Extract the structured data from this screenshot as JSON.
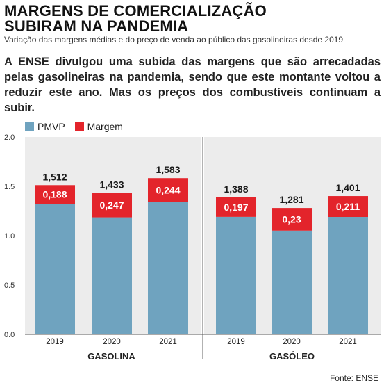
{
  "header": {
    "title_line1": "MARGENS DE COMERCIALIZAÇÃO",
    "title_line2": "SUBIRAM NA PANDEMIA",
    "subtitle": "Variação das margens médias e do preço de venda ao público das gasolineiras desde 2019",
    "lead": "A ENSE divulgou uma subida das margens que são arrecadadas pelas gasolineiras na pandemia, sendo que este montante voltou a reduzir este ano. Mas os preços dos combustíveis continuam a subir."
  },
  "colors": {
    "pmvp": "#6fa3bf",
    "margem": "#e3242b",
    "panel": "#ececec"
  },
  "legend": {
    "pmvp_label": "PMVP",
    "margem_label": "Margem"
  },
  "source": "Fonte: ENSE",
  "chart_data": {
    "type": "bar",
    "stacked": true,
    "title": "",
    "ylim": [
      0,
      2.0
    ],
    "yticks": [
      "0.0",
      "0.5",
      "1.0",
      "1.5",
      "2.0"
    ],
    "groups": [
      {
        "name": "GASOLINA",
        "categories": [
          "2019",
          "2020",
          "2021"
        ],
        "totals": [
          "1,512",
          "1,433",
          "1,583"
        ],
        "total_values": [
          1.512,
          1.433,
          1.583
        ],
        "margem_labels": [
          "0,188",
          "0,247",
          "0,244"
        ],
        "margem_values": [
          0.188,
          0.247,
          0.244
        ]
      },
      {
        "name": "GASÓLEO",
        "categories": [
          "2019",
          "2020",
          "2021"
        ],
        "totals": [
          "1,388",
          "1,281",
          "1,401"
        ],
        "total_values": [
          1.388,
          1.281,
          1.401
        ],
        "margem_labels": [
          "0,197",
          "0,23",
          "0,211"
        ],
        "margem_values": [
          0.197,
          0.23,
          0.211
        ]
      }
    ],
    "series": [
      {
        "name": "PMVP"
      },
      {
        "name": "Margem"
      }
    ]
  }
}
